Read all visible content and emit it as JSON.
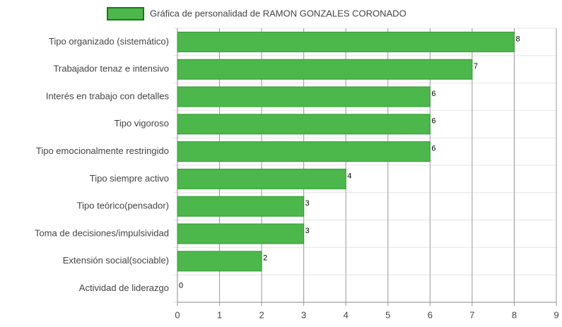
{
  "chart_data": {
    "type": "hbar",
    "categories": [
      "Tipo organizado (sistemático)",
      "Trabajador tenaz e intensivo",
      "Interés en trabajo con detalles",
      "Tipo vigoroso",
      "Tipo emocionalmente restringido",
      "Tipo siempre activo",
      "Tipo teórico(pensador)",
      "Toma de decisiones/impulsividad",
      "Extensión social(sociable)",
      "Actividad de liderazgo"
    ],
    "series": [
      {
        "name": "Gráfica de personalidad de RAMON GONZALES CORONADO",
        "color": "#4cb84c",
        "values": [
          8,
          7,
          6,
          6,
          6,
          4,
          3,
          3,
          2,
          0
        ]
      }
    ],
    "xlim": [
      0,
      9
    ],
    "xticks": [
      0,
      1,
      2,
      3,
      4,
      5,
      6,
      7,
      8,
      9
    ],
    "grid": true
  }
}
